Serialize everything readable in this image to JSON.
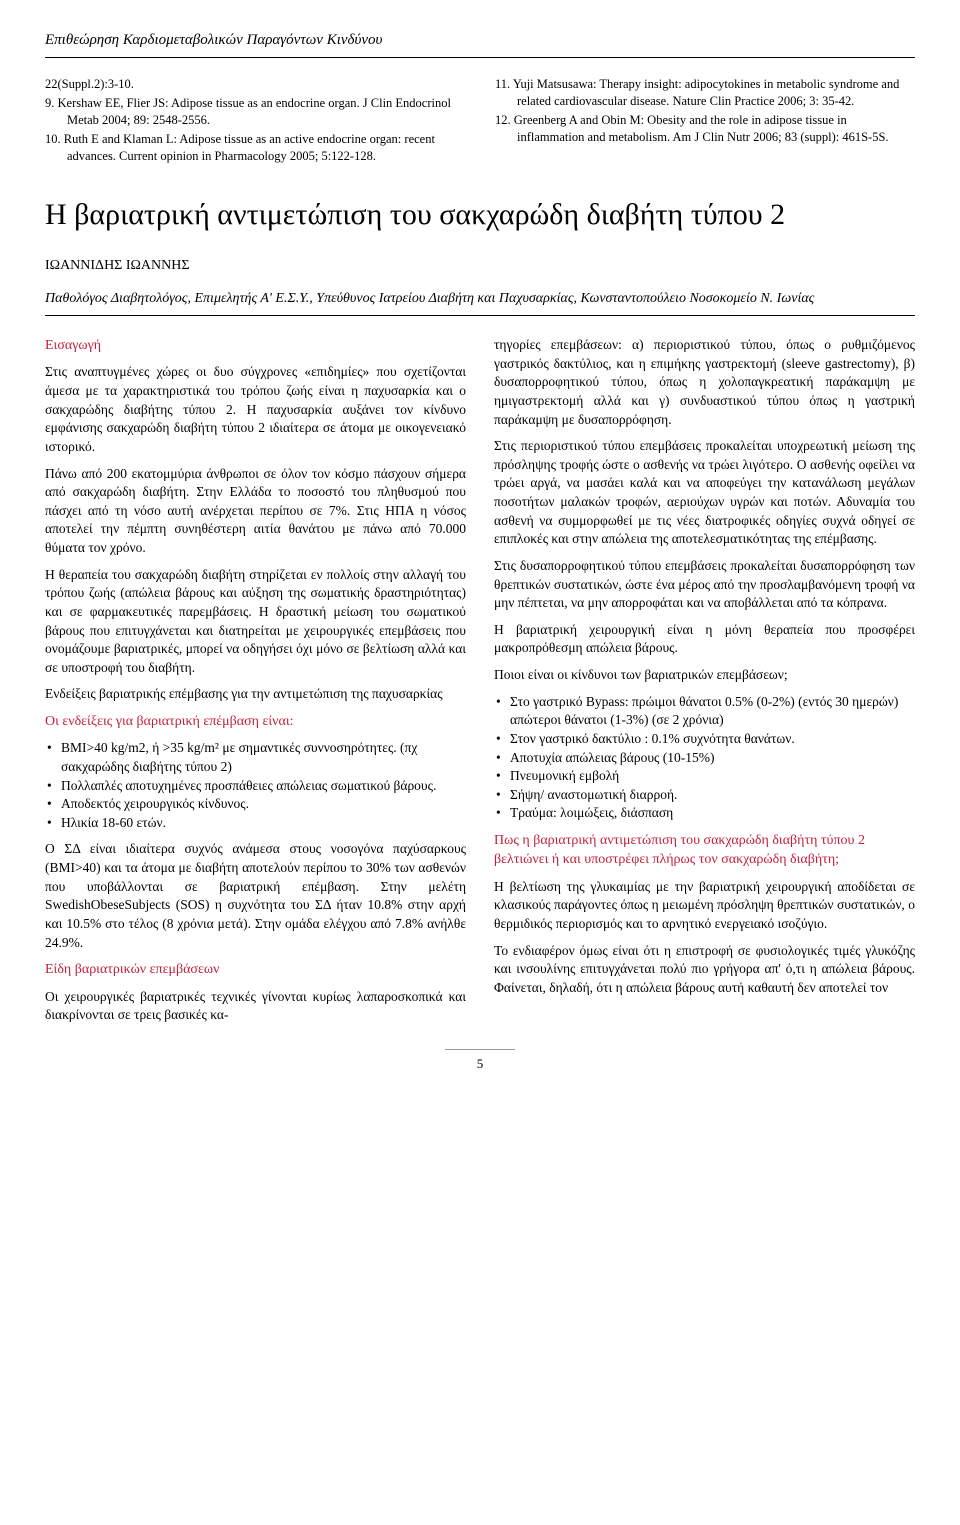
{
  "journal_header": "Επιθεώρηση Καρδιομεταβολικών Παραγόντων Κινδύνου",
  "refs_left": [
    "22(Suppl.2):3-10.",
    "9.  Kershaw EE, Flier JS: Adipose tissue as an endocrine organ. J Clin Endocrinol Metab 2004; 89: 2548-2556.",
    "10. Ruth E and Klaman L: Adipose tissue as an active endocrine organ: recent advances. Current opinion in Pharmacology 2005; 5:122-128."
  ],
  "refs_right": [
    "11. Yuji Matsusawa: Therapy insight: adipocytokines in metabolic syndrome and related cardiovascular disease. Nature Clin Practice 2006; 3: 35-42.",
    "12. Greenberg A and Obin M: Obesity and the role in adipose tissue in inflammation and metabolism. Am J Clin Nutr 2006; 83 (suppl): 461S-5S."
  ],
  "article_title": "Η βαριατρική αντιμετώπιση του σακχαρώδη διαβήτη τύπου 2",
  "author": "ΙΩΑΝΝΙΔΗΣ ΙΩΑΝΝΗΣ",
  "affiliation": "Παθολόγος Διαβητολόγος, Επιμελητής Α' Ε.Σ.Υ., Υπεύθυνος Ιατρείου Διαβήτη και Παχυσαρκίας, Κωνσταντοπούλειο Νοσοκομείο Ν. Ιωνίας",
  "left_col": {
    "sec1_h": "Εισαγωγή",
    "sec1_p1": "Στις αναπτυγμένες χώρες οι δυο σύγχρονες «επιδημίες» που σχετίζονται άμεσα με τα χαρακτηριστικά του τρόπου ζωής είναι η παχυσαρκία και ο σακχαρώδης διαβήτης τύπου 2. Η παχυσαρκία αυξάνει τον κίνδυνο εμφάνισης σακχαρώδη διαβήτη τύπου 2 ιδιαίτερα σε άτομα με οικογενειακό ιστορικό.",
    "sec1_p2": "Πάνω από 200 εκατομμύρια άνθρωποι σε όλον τον κόσμο πάσχουν σήμερα από σακχαρώδη διαβήτη. Στην Ελλάδα το ποσοστό του πληθυσμού που πάσχει από τη νόσο αυτή ανέρχεται περίπου σε 7%. Στις ΗΠΑ η νόσος αποτελεί την πέμπτη συνηθέστερη αιτία θανάτου με πάνω από 70.000 θύματα τον χρόνο.",
    "sec1_p3": "Η θεραπεία του σακχαρώδη διαβήτη στηρίζεται εν πολλοίς στην αλλαγή του τρόπου ζωής (απώλεια βάρους και αύξηση της σωματικής δραστηριότητας) και σε φαρμακευτικές παρεμβάσεις. Η δραστική μείωση του σωματικού βάρους που επιτυγχάνεται και διατηρείται με χειρουργικές επεμβάσεις που ονομάζουμε βαριατρικές, μπορεί να οδηγήσει όχι μόνο σε βελτίωση αλλά και σε υποστροφή του διαβήτη.",
    "sec1_p4": "Ενδείξεις βαριατρικής επέμβασης για την αντιμετώπιση της παχυσαρκίας",
    "sec2_h": "Οι ενδείξεις για βαριατρική επέμβαση είναι:",
    "sec2_bullets": [
      "BMI>40 kg/m2, ή >35 kg/m² με σημαντικές συννοσηρότητες. (πχ σακχαρώδης διαβήτης τύπου 2)",
      "Πολλαπλές αποτυχημένες προσπάθειες απώλειας σωματικού βάρους.",
      "Αποδεκτός χειρουργικός κίνδυνος.",
      "Ηλικία 18-60 ετών."
    ],
    "sec2_p1": "Ο ΣΔ είναι ιδιαίτερα συχνός ανάμεσα στους νοσογόνα παχύσαρκους (BMI>40) και τα άτομα με διαβήτη αποτελούν περίπου το 30% των ασθενών που υποβάλλονται σε βαριατρική επέμβαση. Στην μελέτη SwedishObeseSubjects (SOS) η συχνότητα του ΣΔ ήταν 10.8% στην αρχή και 10.5% στο τέλος (8 χρόνια μετά). Στην ομάδα ελέγχου από 7.8% ανήλθε 24.9%.",
    "sec3_h": "Είδη βαριατρικών επεμβάσεων",
    "sec3_p1": "Οι χειρουργικές βαριατρικές τεχνικές γίνονται κυρίως λαπαροσκοπικά και διακρίνονται σε τρεις βασικές κα-"
  },
  "right_col": {
    "p1": "τηγορίες επεμβάσεων: α) περιοριστικού τύπου, όπως ο ρυθμιζόμενος γαστρικός δακτύλιος, και η επιμήκης γαστρεκτομή (sleeve gastrectomy), β) δυσαπορροφητικού τύπου, όπως η χολοπαγκρεατική παράκαμψη με ημιγαστρεκτομή αλλά και γ) συνδυαστικού τύπου όπως η γαστρική παράκαμψη με δυσαπορρόφηση.",
    "p2": "Στις περιοριστικού τύπου επεμβάσεις προκαλείται υποχρεωτική μείωση της πρόσληψης τροφής ώστε ο ασθενής να τρώει λιγότερο. Ο ασθενής οφείλει να τρώει αργά, να μασάει καλά και να αποφεύγει την κατανάλωση μεγάλων ποσοτήτων μαλακών τροφών, αεριούχων υγρών και ποτών. Αδυναμία του ασθενή να συμμορφωθεί με τις νέες διατροφικές οδηγίες συχνά οδηγεί σε επιπλοκές και στην απώλεια της αποτελεσματικότητας της επέμβασης.",
    "p3": "Στις δυσαπορροφητικού τύπου επεμβάσεις προκαλείται δυσαπορρόφηση των θρεπτικών συστατικών, ώστε ένα μέρος από την προσλαμβανόμενη τροφή να μην πέπτεται, να μην απορροφάται και να αποβάλλεται από τα κόπρανα.",
    "p4": "Η βαριατρική χειρουργική είναι η μόνη θεραπεία που προσφέρει μακροπρόθεσμη απώλεια βάρους.",
    "p5": "Ποιοι είναι οι κίνδυνοι των βαριατρικών επεμβάσεων;",
    "bullets": [
      "Στο γαστρικό Bypass: πρώιμοι θάνατοι 0.5% (0-2%) (εντός 30 ημερών) απώτεροι θάνατοι (1-3%) (σε 2 χρόνια)",
      "Στον γαστρικό δακτύλιο : 0.1% συχνότητα θανάτων.",
      "Αποτυχία απώλειας βάρους (10-15%)",
      "Πνευμονική εμβολή",
      "Σήψη/ αναστομωτική διαρροή.",
      "Τραύμα: λοιμώξεις, διάσπαση"
    ],
    "sec_h": "Πως η βαριατρική αντιμετώπιση του σακχαρώδη διαβήτη τύπου 2 βελτιώνει ή και υποστρέφει πλήρως τον σακχαρώδη διαβήτη;",
    "sec_p1": "Η βελτίωση της γλυκαιμίας με την βαριατρική χειρουργική αποδίδεται σε κλασικούς παράγοντες όπως η μειωμένη πρόσληψη θρεπτικών συστατικών, ο θερμιδικός περιορισμός και το αρνητικό ενεργειακό ισοζύγιο.",
    "sec_p2": "Το ενδιαφέρον όμως είναι ότι η επιστροφή σε φυσιολογικές τιμές γλυκόζης και ινσουλίνης επιτυγχάνεται πολύ πιο γρήγορα απ' ό,τι η απώλεια βάρους. Φαίνεται, δηλαδή, ότι η απώλεια βάρους αυτή καθαυτή δεν αποτελεί τον"
  },
  "page_number": "5",
  "colors": {
    "heading_red": "#c41e3a",
    "text_black": "#000000",
    "background": "#ffffff"
  }
}
